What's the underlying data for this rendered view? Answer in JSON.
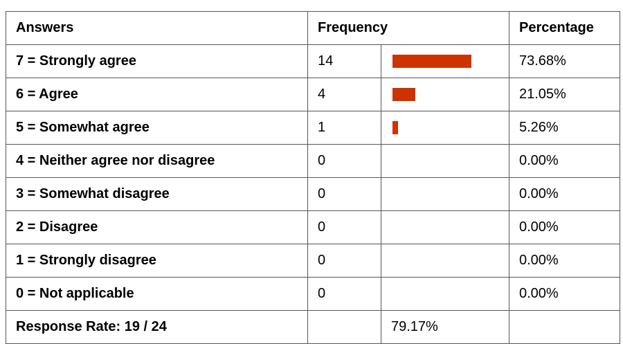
{
  "table": {
    "headers": [
      "Answers",
      "Frequency",
      "Percentage"
    ],
    "rows": [
      {
        "answer": "7 = Strongly agree",
        "frequency": 14,
        "percentage": "73.68%"
      },
      {
        "answer": "6 = Agree",
        "frequency": 4,
        "percentage": "21.05%"
      },
      {
        "answer": "5 = Somewhat agree",
        "frequency": 1,
        "percentage": "5.26%"
      },
      {
        "answer": "4 = Neither agree nor disagree",
        "frequency": 0,
        "percentage": "0.00%"
      },
      {
        "answer": "3 = Somewhat disagree",
        "frequency": 0,
        "percentage": "0.00%"
      },
      {
        "answer": "2 = Disagree",
        "frequency": 0,
        "percentage": "0.00%"
      },
      {
        "answer": "1 = Strongly disagree",
        "frequency": 0,
        "percentage": "0.00%"
      },
      {
        "answer": "0 = Not applicable",
        "frequency": 0,
        "percentage": "0.00%"
      }
    ],
    "footer": {
      "label": "Response Rate: 19 / 24",
      "rate": "79.17%"
    },
    "bar_color": "#cc3300"
  }
}
